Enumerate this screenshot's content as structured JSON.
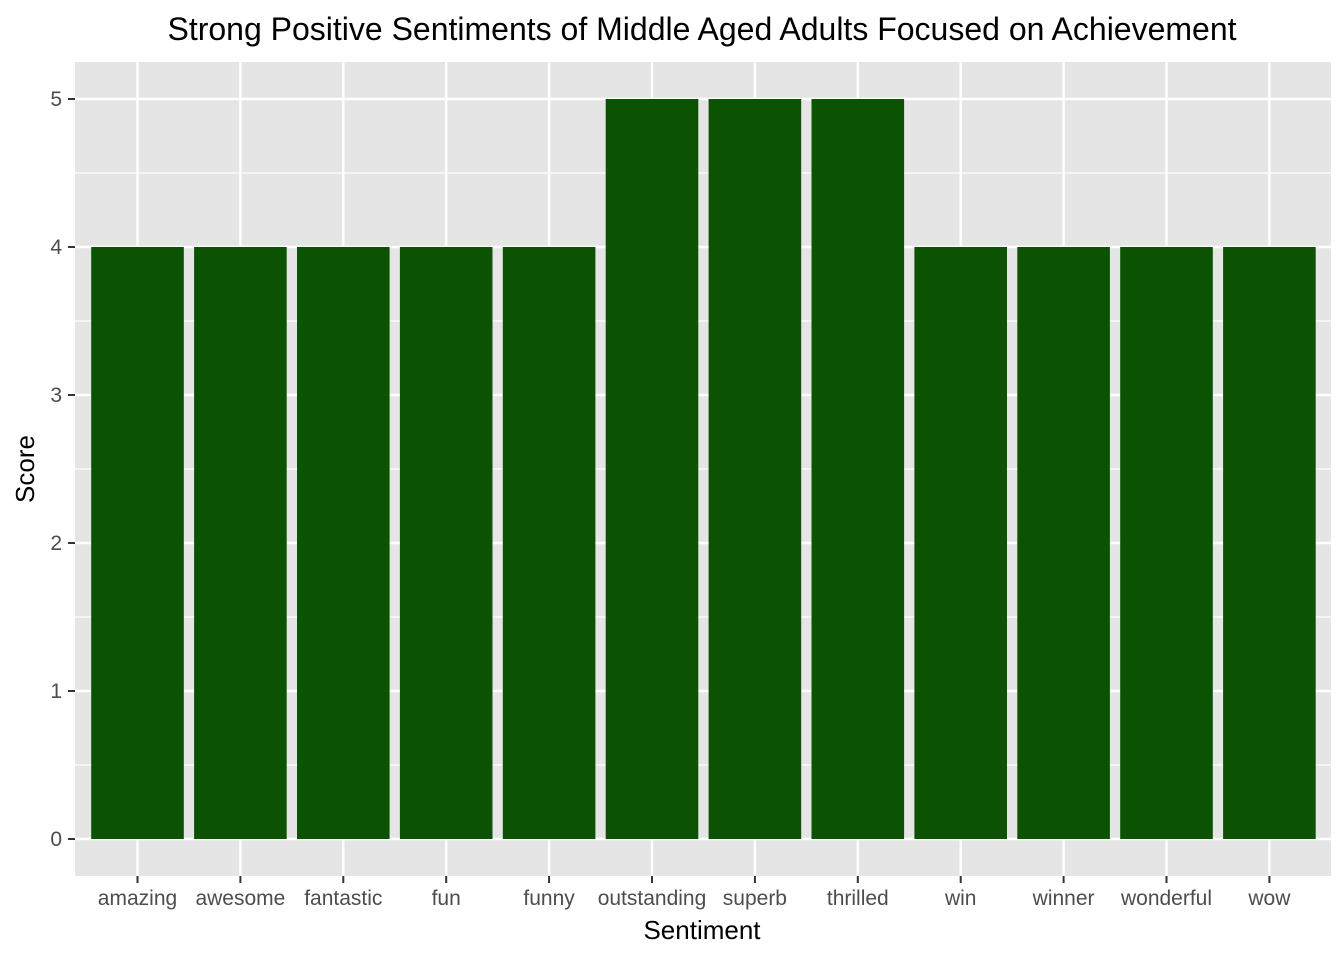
{
  "chart_data": {
    "type": "bar",
    "title": "Strong Positive Sentiments of Middle Aged Adults Focused on Achievement",
    "xlabel": "Sentiment",
    "ylabel": "Score",
    "categories": [
      "amazing",
      "awesome",
      "fantastic",
      "fun",
      "funny",
      "outstanding",
      "superb",
      "thrilled",
      "win",
      "winner",
      "wonderful",
      "wow"
    ],
    "values": [
      4,
      4,
      4,
      4,
      4,
      5,
      5,
      5,
      4,
      4,
      4,
      4
    ],
    "ylim": [
      0,
      5
    ],
    "yticks": [
      "0",
      "1",
      "2",
      "3",
      "4",
      "5"
    ],
    "grid": true,
    "legend": "none",
    "colors": {
      "bar": "#0b5303",
      "panel": "#e5e5e5",
      "grid": "#ffffff"
    }
  }
}
